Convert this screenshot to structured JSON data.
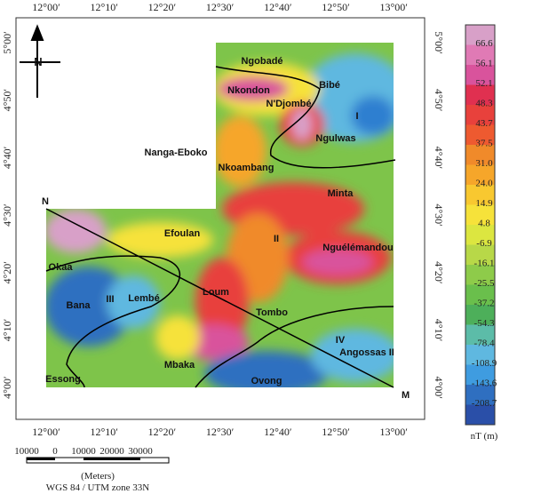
{
  "longitude_labels": [
    "12°00′",
    "12°10′",
    "12°20′",
    "12°30′",
    "12°40′",
    "12°50′",
    "13°00′"
  ],
  "latitude_labels": [
    "5°00′",
    "4°50′",
    "4°40′",
    "4°30′",
    "4°20′",
    "4°10′",
    "4°00′"
  ],
  "places": [
    "Ngobadé",
    "Nkondon",
    "Bibé",
    "N'Djombé",
    "Ngulwas",
    "Nanga-Eboko",
    "Nkoambang",
    "Minta",
    "Nguélémandou",
    "Efoulan",
    "Okaa",
    "Lembé",
    "Loum",
    "Bana",
    "Tombo",
    "Angossas II",
    "Mbaka",
    "Ovong",
    "Essong"
  ],
  "regions": [
    "I",
    "II",
    "III",
    "IV"
  ],
  "profile": {
    "start": "N",
    "end": "M"
  },
  "compass": "N",
  "legend": {
    "title": "nT (m)",
    "labels": [
      "66.6",
      "56.1",
      "52.1",
      "48.3",
      "43.7",
      "37.5",
      "31.0",
      "24.0",
      "14.9",
      "4.8",
      "-6.9",
      "-16.1",
      "-25.5",
      "-37.2",
      "-54.3",
      "-78.4",
      "-108.9",
      "-143.6",
      "-208.7"
    ]
  },
  "scale": {
    "labels": [
      "10000",
      "0",
      "10000",
      "20000",
      "30000"
    ],
    "unit": "(Meters)",
    "projection": "WGS 84 / UTM zone 33N"
  }
}
